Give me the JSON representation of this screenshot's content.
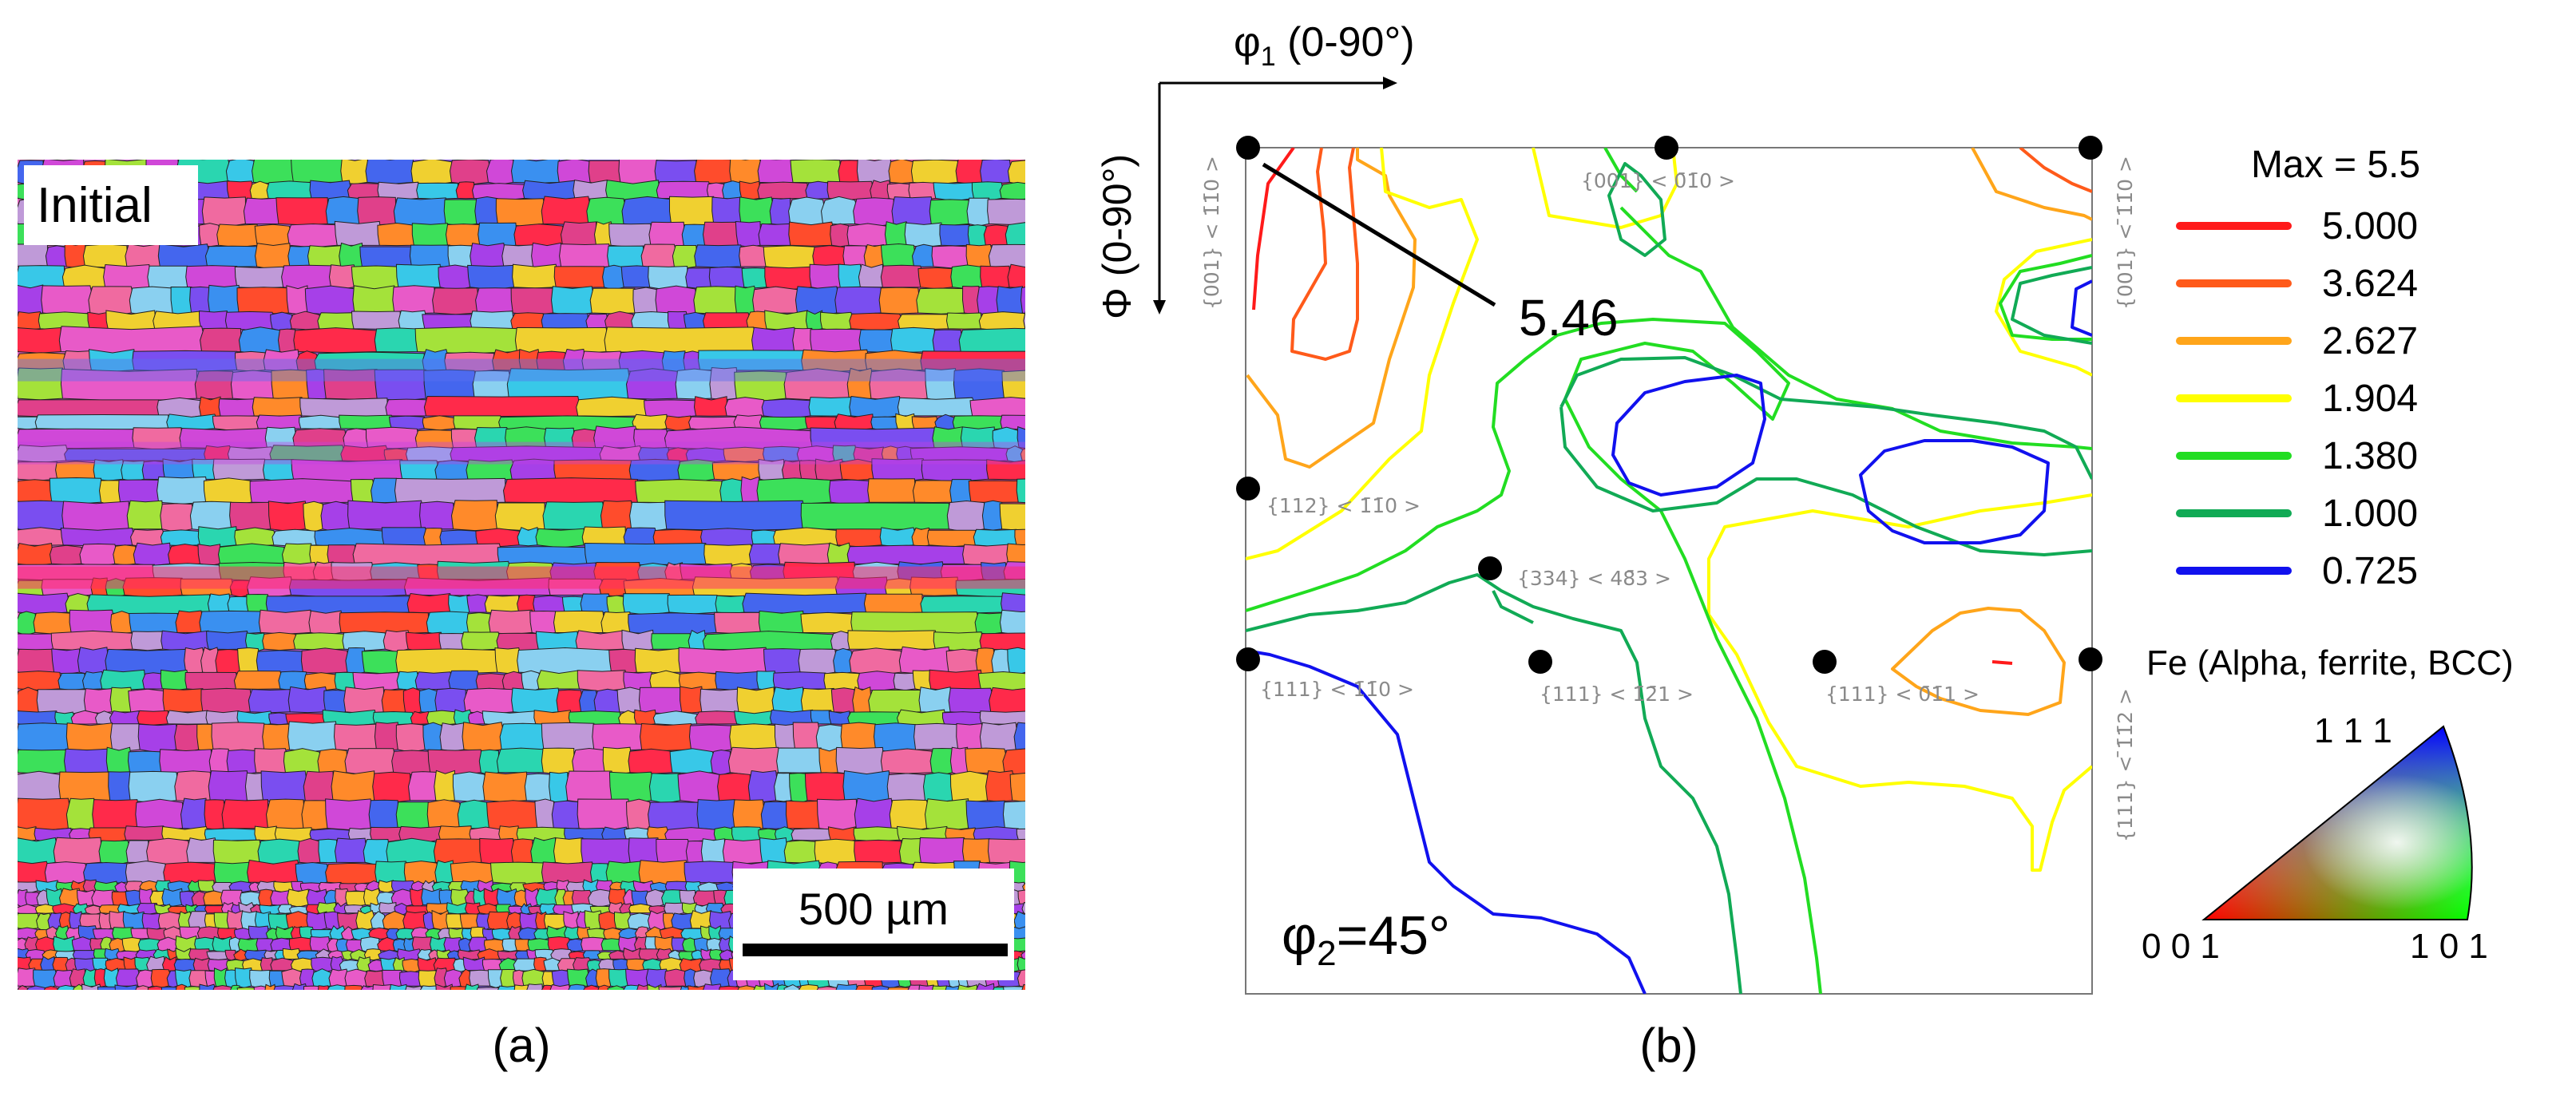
{
  "panel_a": {
    "caption": "(a)",
    "label": "Initial",
    "scale_bar": "500 µm"
  },
  "panel_b": {
    "caption": "(b)",
    "phi1": {
      "symbol": "φ",
      "sub": "1",
      "range": " (0-90°)"
    },
    "Phi": {
      "symbol": "Φ",
      "range": " (0-90°)"
    },
    "phi2": {
      "symbol": "φ",
      "sub": "2",
      "value": "=45°"
    },
    "peak_value": "5.46",
    "components": [
      "{001} < 1̄1̄0 >",
      "{001} < 0̄1̄0 >",
      "{001} < ̄1̄1̄0 >",
      "{112} < 1̄1̄0 >",
      "{334} < 48̄3 >",
      "{111} < 1̄1̄0 >",
      "{111} < 1̄2̄1 >",
      "{111} < 0̄1̄1 >",
      "{111} < ̄1̄1̄2 >"
    ]
  },
  "legend": {
    "max_label": "Max = 5.5",
    "levels": [
      {
        "value": "5.000",
        "color": "#ff1a1a"
      },
      {
        "value": "3.624",
        "color": "#ff5a1a"
      },
      {
        "value": "2.627",
        "color": "#ffa51a"
      },
      {
        "value": "1.904",
        "color": "#ffff00"
      },
      {
        "value": "1.380",
        "color": "#22dd22"
      },
      {
        "value": "1.000",
        "color": "#11aa55"
      },
      {
        "value": "0.725",
        "color": "#1111ee"
      }
    ]
  },
  "ipf_key": {
    "title": "Fe (Alpha, ferrite, BCC)",
    "corner_001": "0 0 1",
    "corner_101": "1 0 1",
    "corner_111": "1 1 1"
  }
}
